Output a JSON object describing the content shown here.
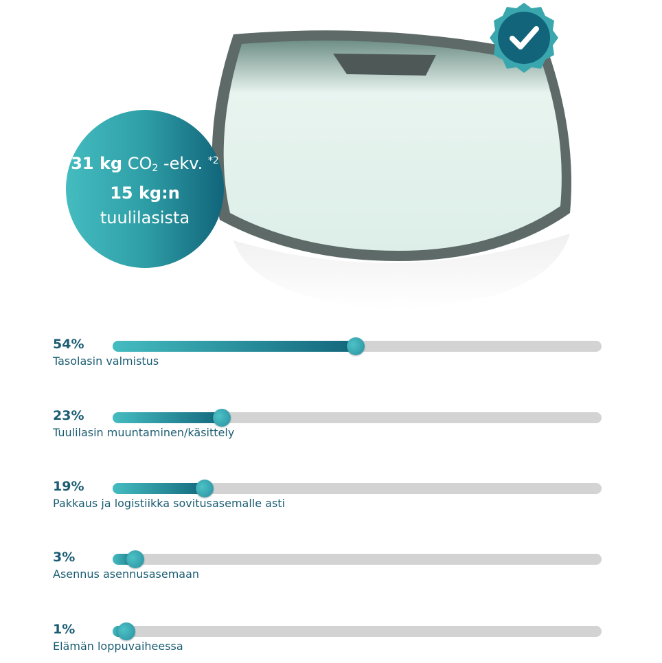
{
  "badge": {
    "amount": "31 kg",
    "unit": "CO",
    "unit_sub": "2",
    "unit_suffix": " -ekv. ",
    "footnote": "*2",
    "weight": "15 kg:n",
    "object": "tuulilasista"
  },
  "colors": {
    "accent_light": "#44bcc0",
    "accent_dark": "#11647a",
    "track": "#d3d3d3"
  },
  "icons": {
    "check": "check-badge-icon",
    "windshield": "windshield-image"
  },
  "bars": [
    {
      "percent_label": "54%",
      "value": 54,
      "label": "Tasolasin valmistus"
    },
    {
      "percent_label": "23%",
      "value": 23,
      "label": "Tuulilasin muuntaminen/käsittely"
    },
    {
      "percent_label": "19%",
      "value": 19,
      "label": "Pakkaus ja logistiikka sovitusasemalle asti"
    },
    {
      "percent_label": "3%",
      "value": 3,
      "label": "Asennus asennusasemaan"
    },
    {
      "percent_label": "1%",
      "value": 1,
      "label": "Elämän loppuvaiheessa"
    }
  ]
}
